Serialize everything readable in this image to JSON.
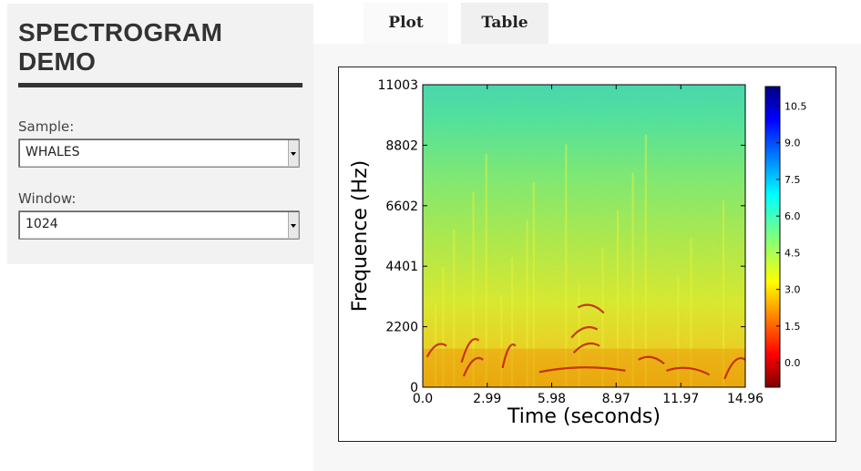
{
  "sidebar": {
    "title": "SPECTROGRAM\nDEMO",
    "sample": {
      "label": "Sample:",
      "value": "WHALES"
    },
    "window": {
      "label": "Window:",
      "value": "1024"
    }
  },
  "tabs": [
    {
      "label": "Plot",
      "active": true
    },
    {
      "label": "Table",
      "active": false
    }
  ],
  "chart_data": {
    "type": "heatmap",
    "title": "",
    "xlabel": "Time (seconds)",
    "ylabel": "Frequence (Hz)",
    "x_ticks": [
      "0.0",
      "2.99",
      "5.98",
      "8.97",
      "11.97",
      "14.96"
    ],
    "x_tick_values": [
      0.0,
      2.99,
      5.98,
      8.97,
      11.97,
      14.96
    ],
    "y_ticks": [
      "0",
      "2200",
      "4401",
      "6602",
      "8802",
      "11003"
    ],
    "y_tick_values": [
      0,
      2200,
      4401,
      6602,
      8802,
      11003
    ],
    "xlim": [
      0.0,
      14.96
    ],
    "ylim": [
      0,
      11003
    ],
    "colorbar": {
      "ticks": [
        "0.0",
        "1.5",
        "3.0",
        "4.5",
        "6.0",
        "7.5",
        "9.0",
        "10.5"
      ],
      "tick_values": [
        0.0,
        1.5,
        3.0,
        4.5,
        6.0,
        7.5,
        9.0,
        10.5
      ],
      "range": [
        -1.0,
        11.3
      ],
      "colormap": "jet_reversed"
    },
    "colors": {
      "low_band": "#ff9900",
      "mid_band": "#ffff33",
      "high_band": "#33ddaa",
      "accent_red": "#cc0000"
    }
  }
}
